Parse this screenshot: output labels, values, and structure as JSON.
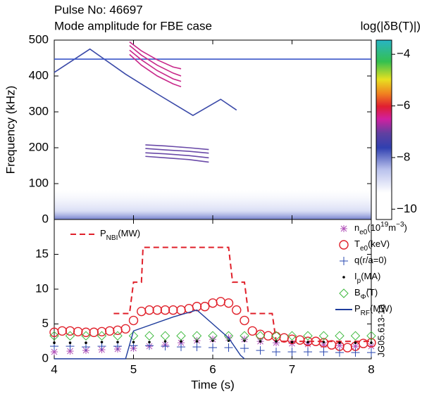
{
  "chart_data": [
    {
      "type": "line",
      "title": [
        "Pulse No: 46697",
        "Mode amplitude for FBE case"
      ],
      "ylabel": "Frequency (kHz)",
      "xlim": [
        4,
        8
      ],
      "xticks": [
        4,
        5,
        6,
        7,
        8
      ],
      "ylim": [
        0,
        500
      ],
      "yticks": [
        0,
        100,
        200,
        300,
        400,
        500
      ],
      "series": [
        {
          "color": "#3a49a8",
          "x": [
            4.0,
            4.45,
            4.9,
            5.3,
            5.75,
            6.1,
            6.3
          ],
          "values": [
            410,
            475,
            405,
            350,
            290,
            335,
            305
          ]
        },
        {
          "color": "#3a55c8",
          "x": [
            4,
            8
          ],
          "values": [
            447,
            447
          ]
        },
        {
          "color": "#c8288a",
          "x": [
            4.95,
            5.1,
            5.3,
            5.5,
            5.6
          ],
          "values": [
            495,
            470,
            445,
            425,
            420
          ]
        },
        {
          "color": "#c8288a",
          "x": [
            4.95,
            5.1,
            5.3,
            5.5,
            5.6
          ],
          "values": [
            485,
            458,
            430,
            408,
            400
          ]
        },
        {
          "color": "#c8288a",
          "x": [
            4.95,
            5.1,
            5.3,
            5.5,
            5.6
          ],
          "values": [
            472,
            445,
            415,
            392,
            385
          ]
        },
        {
          "color": "#c8288a",
          "x": [
            4.95,
            5.1,
            5.3,
            5.5,
            5.6
          ],
          "values": [
            460,
            430,
            400,
            378,
            370
          ]
        },
        {
          "color": "#6a4aa8",
          "x": [
            5.15,
            5.4,
            5.7,
            5.95
          ],
          "values": [
            208,
            205,
            200,
            195
          ]
        },
        {
          "color": "#6a4aa8",
          "x": [
            5.15,
            5.4,
            5.7,
            5.95
          ],
          "values": [
            198,
            194,
            190,
            185
          ]
        },
        {
          "color": "#6a4aa8",
          "x": [
            5.15,
            5.4,
            5.7,
            5.95
          ],
          "values": [
            186,
            183,
            178,
            172
          ]
        },
        {
          "color": "#6a4aa8",
          "x": [
            5.15,
            5.4,
            5.7,
            5.95
          ],
          "values": [
            176,
            172,
            167,
            160
          ]
        }
      ],
      "colorbar": {
        "label": "log(|δB(T)|)",
        "clim": [
          -10.4,
          -3.45
        ],
        "ticks": [
          {
            "value": -4,
            "label": "−4"
          },
          {
            "value": -6,
            "label": "−6"
          },
          {
            "value": -8,
            "label": "−8"
          },
          {
            "value": -10,
            "label": "−10"
          }
        ]
      }
    },
    {
      "type": "line",
      "xlabel": "Time (s)",
      "xlim": [
        4,
        8
      ],
      "xticks": [
        4,
        5,
        6,
        7,
        8
      ],
      "ylim": [
        0,
        20
      ],
      "yticks": [
        0,
        5,
        10,
        15
      ],
      "figure_id": "JG05.613-1a",
      "series": [
        {
          "name": [
            [
              "P",
              "base"
            ],
            [
              "NBI",
              "sub"
            ],
            [
              "(MW)",
              "base"
            ]
          ],
          "marker": "dashed",
          "color": "#e0202a",
          "x": [
            4.75,
            4.95,
            5.0,
            5.1,
            5.12,
            6.2,
            6.25,
            6.4,
            6.45,
            6.75,
            6.8,
            8
          ],
          "values": [
            6.5,
            6.5,
            11,
            11,
            16,
            16,
            11,
            11,
            6.5,
            6.5,
            2.5,
            2.5
          ]
        },
        {
          "name": [
            [
              "n",
              "base"
            ],
            [
              "e0",
              "sub"
            ],
            [
              "(10",
              "base"
            ],
            [
              "19",
              "sup"
            ],
            [
              "m",
              "base"
            ],
            [
              "−3",
              "sup"
            ],
            [
              ")",
              "base"
            ]
          ],
          "marker": "asterisk",
          "color": "#b050b8",
          "x": [
            4.0,
            4.2,
            4.4,
            4.6,
            4.8,
            5.0,
            5.2,
            5.4,
            5.6,
            5.8,
            6.0,
            6.2,
            6.4,
            6.6,
            6.8,
            7.0,
            7.2,
            7.4,
            7.6,
            7.8,
            8.0
          ],
          "values": [
            1.0,
            1.1,
            1.2,
            1.3,
            1.4,
            1.5,
            1.8,
            2.0,
            2.3,
            2.6,
            2.8,
            3.0,
            2.8,
            2.5,
            2.3,
            2.2,
            2.1,
            2.0,
            1.9,
            1.8,
            1.8
          ]
        },
        {
          "name": [
            [
              "T",
              "base"
            ],
            [
              "e0",
              "sub"
            ],
            [
              "(keV)",
              "base"
            ]
          ],
          "marker": "circle",
          "color": "#e0202a",
          "x": [
            4.0,
            4.1,
            4.2,
            4.3,
            4.4,
            4.5,
            4.6,
            4.7,
            4.8,
            4.9,
            5.0,
            5.1,
            5.2,
            5.3,
            5.4,
            5.5,
            5.6,
            5.7,
            5.8,
            5.9,
            6.0,
            6.1,
            6.2,
            6.3,
            6.4,
            6.5,
            6.6,
            6.7,
            6.8,
            6.9,
            7.0,
            7.1,
            7.2,
            7.3,
            7.4,
            7.5,
            7.6,
            7.7,
            7.8,
            7.9,
            8.0
          ],
          "values": [
            3.8,
            4.0,
            4.0,
            3.9,
            3.8,
            3.8,
            3.9,
            4.0,
            4.1,
            4.3,
            5.5,
            6.8,
            7.0,
            7.0,
            7.0,
            7.0,
            7.0,
            7.2,
            7.5,
            7.5,
            8.0,
            8.2,
            8.0,
            7.0,
            5.5,
            4.0,
            3.5,
            3.3,
            3.2,
            3.0,
            2.8,
            2.7,
            2.5,
            2.5,
            2.3,
            2.0,
            1.8,
            1.6,
            1.8,
            2.2,
            2.3
          ]
        },
        {
          "name": [
            [
              "q(r/a=0)",
              "base"
            ]
          ],
          "marker": "plus",
          "color": "#2a48b0",
          "x": [
            4.0,
            4.2,
            4.4,
            4.6,
            4.8,
            5.0,
            5.2,
            5.4,
            5.6,
            5.8,
            6.0,
            6.2,
            6.4,
            6.6,
            6.8,
            7.0,
            7.2,
            7.4,
            7.6,
            7.8,
            8.0
          ],
          "values": [
            1.8,
            1.8,
            1.7,
            1.8,
            1.8,
            1.9,
            1.9,
            1.8,
            1.7,
            1.7,
            1.6,
            1.6,
            1.5,
            1.2,
            1.0,
            1.0,
            1.0,
            1.0,
            0.9,
            0.9,
            0.9
          ]
        },
        {
          "name": [
            [
              "I",
              "base"
            ],
            [
              "p",
              "sub"
            ],
            [
              "(MA)",
              "base"
            ]
          ],
          "marker": "dot",
          "color": "#000000",
          "x": [
            4.0,
            4.2,
            4.4,
            4.6,
            4.8,
            5.0,
            5.2,
            5.4,
            5.6,
            5.8,
            6.0,
            6.2,
            6.4,
            6.6,
            6.8,
            7.0,
            7.2,
            7.4,
            7.6,
            7.8,
            8.0
          ],
          "values": [
            2.3,
            2.3,
            2.3,
            2.4,
            2.4,
            2.4,
            2.4,
            2.5,
            2.5,
            2.5,
            2.6,
            2.6,
            2.6,
            2.5,
            2.5,
            2.4,
            2.4,
            2.4,
            2.3,
            2.3,
            2.3
          ]
        },
        {
          "name": [
            [
              "B",
              "base"
            ],
            [
              "Φ",
              "sub"
            ],
            [
              "(T)",
              "base"
            ]
          ],
          "marker": "diamond",
          "color": "#3cb83c",
          "x": [
            4.0,
            4.2,
            4.4,
            4.6,
            4.8,
            5.0,
            5.2,
            5.4,
            5.6,
            5.8,
            6.0,
            6.2,
            6.4,
            6.6,
            6.8,
            7.0,
            7.2,
            7.4,
            7.6,
            7.8,
            8.0
          ],
          "values": [
            3.3,
            3.3,
            3.3,
            3.3,
            3.3,
            3.3,
            3.3,
            3.3,
            3.3,
            3.3,
            3.3,
            3.3,
            3.3,
            3.3,
            3.3,
            3.3,
            3.3,
            3.3,
            3.3,
            3.3,
            3.3
          ]
        },
        {
          "name": [
            [
              "P",
              "base"
            ],
            [
              "RF",
              "sub"
            ],
            [
              "(MW)",
              "base"
            ]
          ],
          "marker": "line",
          "color": "#1e3c9c",
          "x": [
            4.0,
            4.9,
            5.0,
            5.5,
            5.8,
            6.0,
            6.2,
            6.35,
            6.4
          ],
          "values": [
            0,
            0,
            4,
            6,
            7,
            5,
            3,
            0.5,
            0
          ]
        }
      ]
    }
  ]
}
